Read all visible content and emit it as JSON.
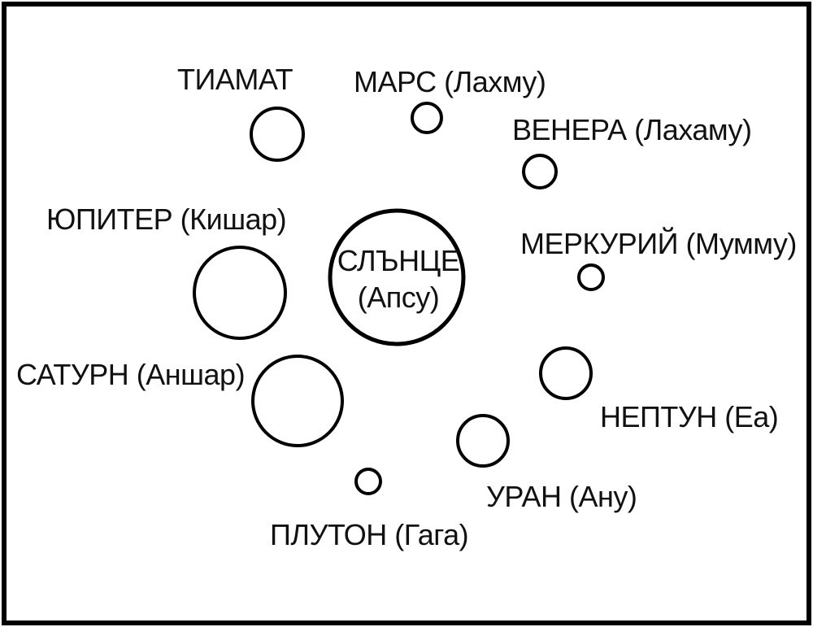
{
  "bodies": {
    "sun": {
      "line1": "СЛЪНЦЕ",
      "line2": "(Апсу)"
    },
    "tiamat": {
      "label": "ТИАМАТ"
    },
    "mars": {
      "label": "МАРС (Лахму)"
    },
    "venus": {
      "label": "ВЕНЕРА (Лахаму)"
    },
    "jupiter": {
      "label": "ЮПИТЕР (Кишар)"
    },
    "mercury": {
      "label": "МЕРКУРИЙ (Мумму)"
    },
    "saturn": {
      "label": "САТУРН (Аншар)"
    },
    "neptune": {
      "label": "НЕПТУН (Еа)"
    },
    "uranus": {
      "label": "УРАН (Ану)"
    },
    "pluto": {
      "label": "ПЛУТОН (Гага)"
    }
  }
}
